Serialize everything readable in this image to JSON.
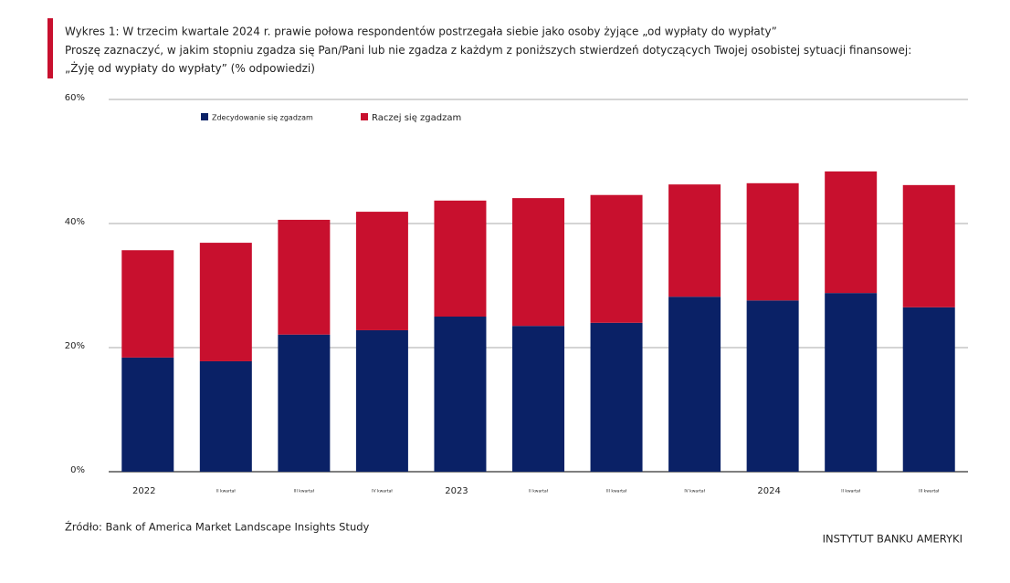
{
  "chart_data": {
    "type": "stacked_bar",
    "title": "Wykres 1: W trzecim kwartale 2024 r. prawie połowa respondentów postrzegała siebie jako osoby żyjące „od wypłaty do wypłaty”",
    "subtitle": "Proszę zaznaczyć, w jakim stopniu zgadza się Pan/Pani lub nie zgadza z każdym z poniższych stwierdzeń dotyczących Twojej osobistej sytuacji finansowej: „Żyję od wypłaty do wypłaty” (% odpowiedzi)",
    "source": "Źródło: Bank of America Market Landscape Insights Study",
    "brand": "INSTYTUT BANKU AMERYKI",
    "categories": [
      "2022",
      "II kwartał",
      "III kwartał",
      "IV kwartał",
      "2023",
      "II kwartał",
      "III kwartał",
      "IV kwartał",
      "2024",
      "II kwartał",
      "III kwartał"
    ],
    "series": [
      {
        "name": "Zdecydowanie się zgadzam",
        "color": "#0a2166",
        "values": [
          18.4,
          17.8,
          22.1,
          22.8,
          25.0,
          23.5,
          24.0,
          28.2,
          27.6,
          28.8,
          26.5
        ]
      },
      {
        "name": "Raczej się zgadzam",
        "color": "#c8102e",
        "values": [
          17.3,
          19.1,
          18.5,
          19.1,
          18.7,
          20.6,
          20.6,
          18.1,
          18.9,
          19.6,
          19.7
        ]
      }
    ],
    "ylim": [
      0,
      60
    ],
    "yticks": [
      {
        "value": 0,
        "label": "0%"
      },
      {
        "value": 20,
        "label": "20%"
      },
      {
        "value": 40,
        "label": "40%"
      },
      {
        "value": 60,
        "label": "60%"
      }
    ],
    "grid": true
  }
}
